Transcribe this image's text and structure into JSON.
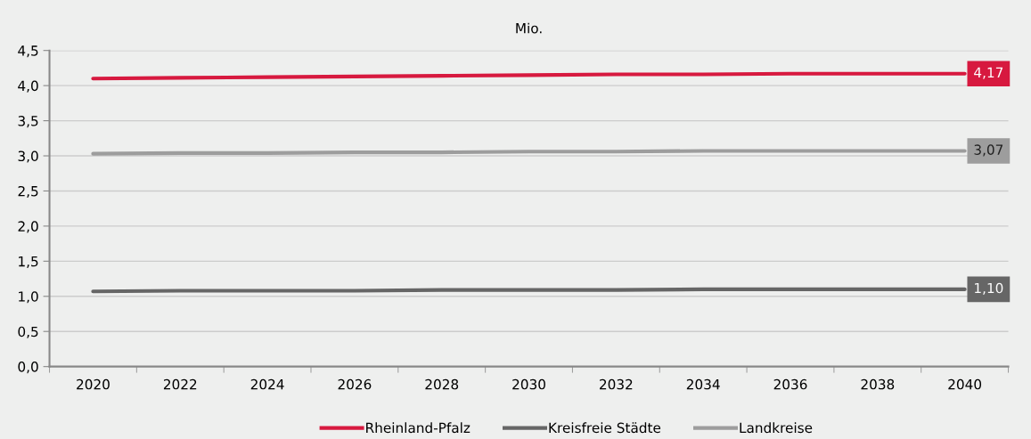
{
  "chart_data": {
    "type": "line",
    "title": "Mio.",
    "categories": [
      "2020",
      "2022",
      "2024",
      "2026",
      "2028",
      "2030",
      "2032",
      "2034",
      "2036",
      "2038",
      "2040"
    ],
    "series": [
      {
        "name": "Rheinland-Pfalz",
        "color": "#d7193f",
        "values": [
          4.1,
          4.11,
          4.12,
          4.13,
          4.14,
          4.15,
          4.16,
          4.16,
          4.17,
          4.17,
          4.17
        ],
        "value_labels": [
          null,
          null,
          null,
          null,
          null,
          null,
          null,
          null,
          null,
          null,
          "4,17"
        ]
      },
      {
        "name": "Kreisfreie Städte",
        "color": "#666666",
        "values": [
          1.07,
          1.08,
          1.08,
          1.08,
          1.09,
          1.09,
          1.09,
          1.1,
          1.1,
          1.1,
          1.1
        ],
        "value_labels": [
          null,
          null,
          null,
          null,
          null,
          null,
          null,
          null,
          null,
          null,
          "1,10"
        ]
      },
      {
        "name": "Landkreise",
        "color": "#9d9d9d",
        "values": [
          3.03,
          3.04,
          3.04,
          3.05,
          3.05,
          3.06,
          3.06,
          3.07,
          3.07,
          3.07,
          3.07
        ],
        "value_labels": [
          null,
          null,
          null,
          null,
          null,
          null,
          null,
          null,
          null,
          null,
          "3,07"
        ]
      }
    ],
    "ylim": [
      0,
      4.5
    ],
    "yticks": [
      {
        "value": 0,
        "label": "0,0"
      },
      {
        "value": 0.5,
        "label": "0,5"
      },
      {
        "value": 1,
        "label": "1,0"
      },
      {
        "value": 1.5,
        "label": "1,5"
      },
      {
        "value": 2,
        "label": "2,0"
      },
      {
        "value": 2.5,
        "label": "2,5"
      },
      {
        "value": 3,
        "label": "3,0"
      },
      {
        "value": 3.5,
        "label": "3,5"
      },
      {
        "value": 4,
        "label": "4,0"
      },
      {
        "value": 4.5,
        "label": "4,5"
      }
    ],
    "grid": "y",
    "legend": "bottom",
    "marker": "none",
    "line_style": "solid"
  }
}
